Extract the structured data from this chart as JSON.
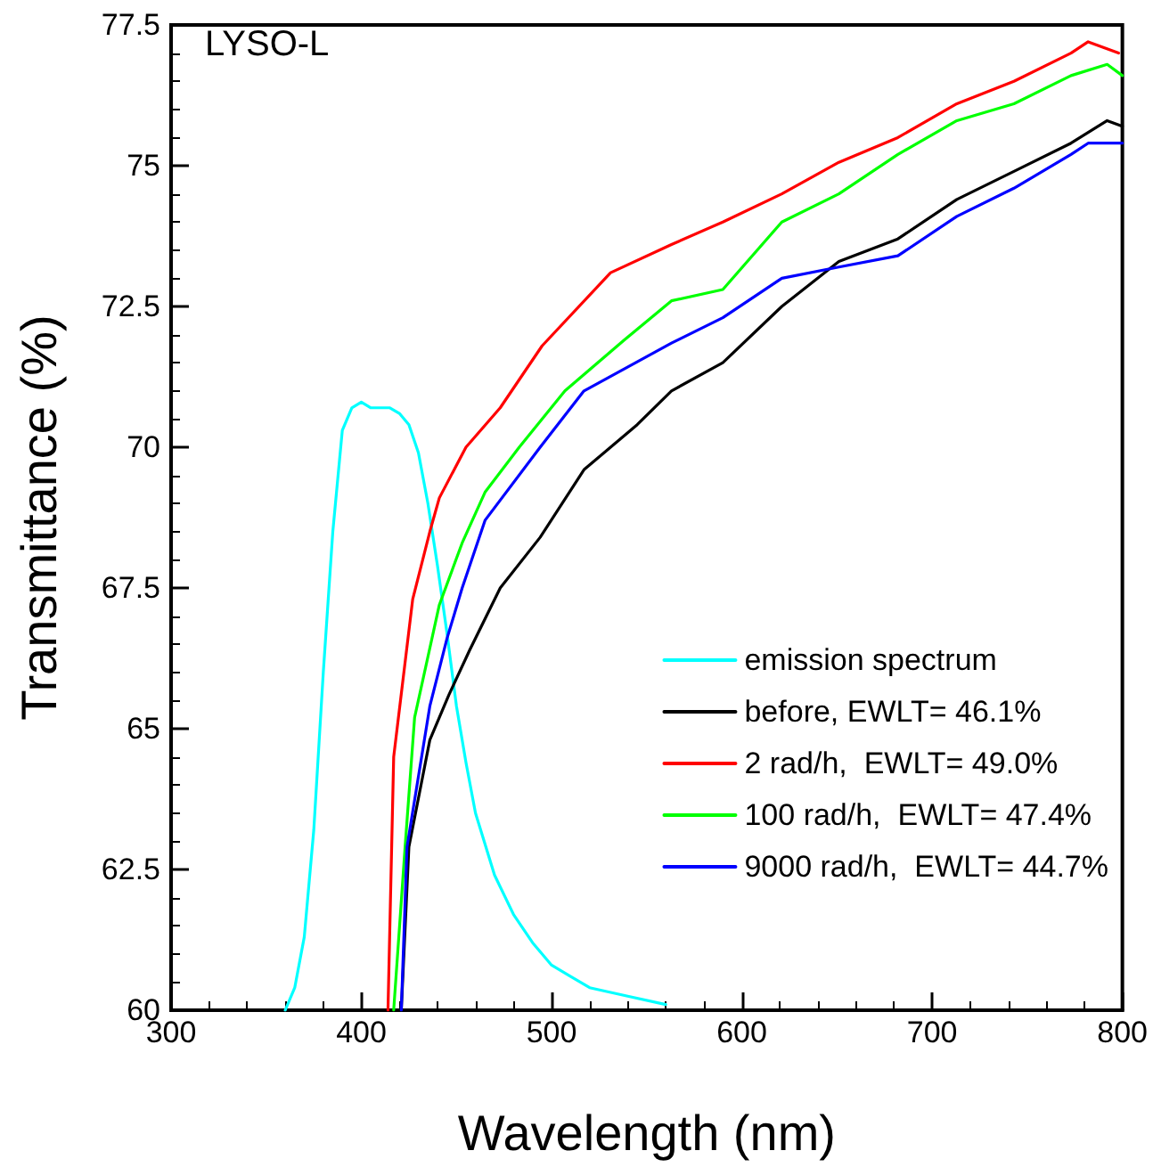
{
  "chart_data": {
    "type": "line",
    "title": "LYSO-L",
    "xlabel": "Wavelength (nm)",
    "ylabel": "Transmittance (%)",
    "xlim": [
      300,
      800
    ],
    "xticks": [
      300,
      400,
      500,
      600,
      700,
      800
    ],
    "ylim": [
      60,
      77.5
    ],
    "yticks": [
      60,
      62.5,
      65,
      67.5,
      70,
      72.5,
      75,
      77.5
    ],
    "grid": false,
    "legend": "bottom right",
    "marker": "none",
    "line_style": "solid",
    "series": [
      {
        "name": "emission spectrum",
        "color": "#00ffff",
        "x": [
          360,
          365,
          370,
          375,
          380,
          385,
          390,
          395,
          400,
          405,
          410,
          415,
          420,
          425,
          430,
          435,
          440,
          445,
          450,
          455,
          460,
          470,
          480,
          490,
          500,
          510,
          520,
          540,
          560
        ],
        "values": [
          60,
          60.4,
          61.3,
          63.2,
          66.0,
          68.5,
          70.3,
          70.7,
          70.8,
          70.7,
          70.7,
          70.7,
          70.6,
          70.4,
          69.9,
          69.0,
          67.9,
          66.7,
          65.4,
          64.4,
          63.5,
          62.4,
          61.7,
          61.2,
          60.8,
          60.6,
          60.4,
          60.25,
          60.1
        ]
      },
      {
        "name": "before, EWLT= 46.1%",
        "color": "#000000",
        "x": [
          421,
          425,
          436,
          446,
          457,
          473,
          494,
          517,
          545,
          563,
          590,
          621,
          651,
          682,
          713,
          743,
          773,
          792,
          800
        ],
        "values": [
          60,
          62.9,
          64.8,
          65.6,
          66.4,
          67.5,
          68.4,
          69.6,
          70.4,
          71.0,
          71.5,
          72.5,
          73.3,
          73.7,
          74.4,
          74.9,
          75.4,
          75.8,
          75.7
        ]
      },
      {
        "name": "2 rad/h,  EWLT= 49.0%",
        "color": "#ff0000",
        "x": [
          414,
          417,
          427,
          436,
          441,
          455,
          473,
          495,
          531,
          563,
          590,
          621,
          651,
          682,
          713,
          743,
          773,
          782,
          798
        ],
        "values": [
          60,
          64.5,
          67.3,
          68.5,
          69.1,
          70.0,
          70.7,
          71.8,
          73.1,
          73.6,
          74.0,
          74.5,
          75.06,
          75.5,
          76.1,
          76.5,
          77.0,
          77.2,
          77.0
        ]
      },
      {
        "name": "100 rad/h,  EWLT= 47.4%",
        "color": "#00ff00",
        "x": [
          417,
          423,
          428,
          441,
          453,
          465,
          483,
          507,
          538,
          563,
          590,
          621,
          651,
          682,
          713,
          743,
          773,
          792,
          800
        ],
        "values": [
          60,
          62.9,
          65.2,
          67.2,
          68.3,
          69.2,
          70.0,
          71.0,
          71.9,
          72.6,
          72.8,
          74.0,
          74.5,
          75.2,
          75.8,
          76.1,
          76.6,
          76.8,
          76.6
        ]
      },
      {
        "name": "9000 rad/h,  EWLT= 44.7%",
        "color": "#0000ff",
        "x": [
          421,
          424,
          436,
          445,
          453,
          465,
          494,
          517,
          563,
          590,
          621,
          651,
          682,
          713,
          743,
          773,
          782,
          800
        ],
        "values": [
          60,
          62.9,
          65.4,
          66.6,
          67.5,
          68.7,
          70.0,
          71.0,
          71.85,
          72.3,
          73.0,
          73.2,
          73.4,
          74.1,
          74.6,
          75.2,
          75.4,
          75.4
        ]
      }
    ]
  }
}
